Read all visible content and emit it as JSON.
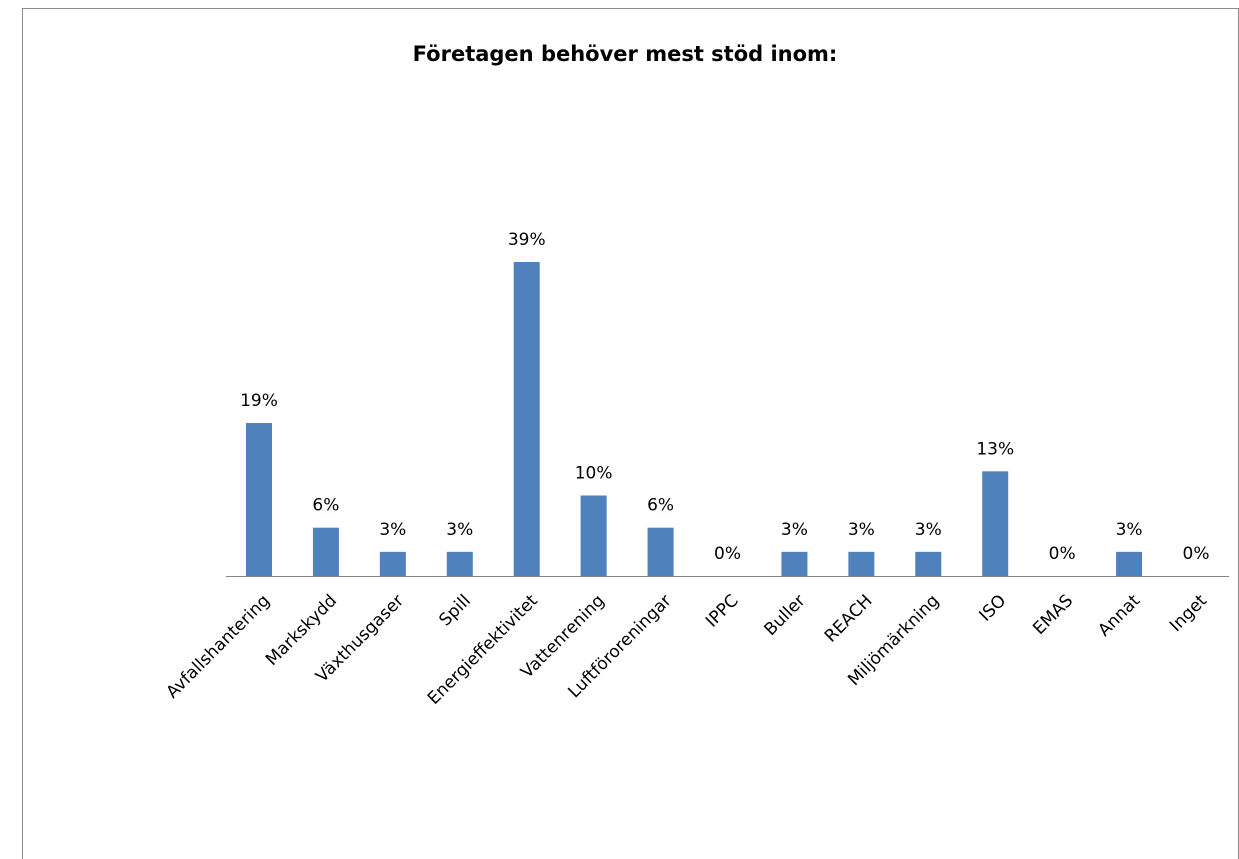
{
  "chart_data": {
    "type": "bar",
    "title": "Företagen behöver mest stöd inom:",
    "categories": [
      "Avfallshantering",
      "Markskydd",
      "Växthusgaser",
      "Spill",
      "Energieffektivitet",
      "Vattenrening",
      "Luftföroreningar",
      "IPPC",
      "Buller",
      "REACH",
      "Miljömärkning",
      "ISO",
      "EMAS",
      "Annat",
      "Inget"
    ],
    "values": [
      19,
      6,
      3,
      3,
      39,
      10,
      6,
      0,
      3,
      3,
      3,
      13,
      0,
      3,
      0
    ],
    "value_labels": [
      "19%",
      "6%",
      "3%",
      "3%",
      "39%",
      "10%",
      "6%",
      "0%",
      "3%",
      "3%",
      "3%",
      "13%",
      "0%",
      "3%",
      "0%"
    ],
    "color": "#4f81bd"
  }
}
